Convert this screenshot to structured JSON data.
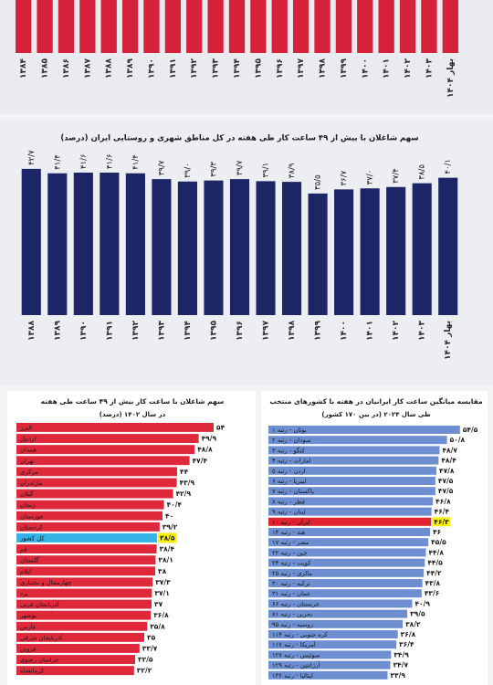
{
  "chart_data": [
    {
      "type": "bar",
      "categories": [
        "۱۳۸۴",
        "۱۳۸۵",
        "۱۳۸۶",
        "۱۳۸۷",
        "۱۳۸۸",
        "۱۳۸۹",
        "۱۳۹۰",
        "۱۳۹۱",
        "۱۳۹۲",
        "۱۳۹۳",
        "۱۳۹۴",
        "۱۳۹۵",
        "۱۳۹۶",
        "۱۳۹۷",
        "۱۳۹۸",
        "۱۳۹۹",
        "۱۴۰۰",
        "۱۴۰۱",
        "۱۴۰۲",
        "۱۴۰۳",
        "بهار ۱۴۰۴"
      ],
      "color": "#d6213a"
    },
    {
      "type": "bar",
      "title": "سهم شاغلان با بیش از ۴۹ ساعت کار طی هفته در کل مناطق شهری و روستایی ایران (درصد)",
      "categories": [
        "۱۳۸۸",
        "۱۳۸۹",
        "۱۳۹۰",
        "۱۳۹۱",
        "۱۳۹۲",
        "۱۳۹۳",
        "۱۳۹۴",
        "۱۳۹۵",
        "۱۳۹۶",
        "۱۳۹۷",
        "۱۳۹۸",
        "۱۳۹۹",
        "۱۴۰۰",
        "۱۴۰۱",
        "۱۴۰۲",
        "۱۴۰۳",
        "بهار ۱۴۰۴"
      ],
      "values": [
        42.7,
        41.4,
        41.6,
        41.6,
        41.4,
        39.7,
        39.0,
        39.3,
        39.7,
        39.1,
        38.9,
        35.5,
        36.7,
        37.0,
        37.4,
        38.5,
        40.1
      ],
      "value_labels": [
        "۴۲/۷",
        "۴۱/۴",
        "۴۱/۶",
        "۴۱/۶",
        "۴۱/۴",
        "۳۹/۷",
        "۳۹/۰",
        "۳۹/۳",
        "۳۹/۷",
        "۳۹/۱",
        "۳۸/۹",
        "۳۵/۵",
        "۳۶/۷",
        "۳۷/۰",
        "۳۷/۴",
        "۳۸/۵",
        "۴۰/۱"
      ],
      "color": "#1c2566"
    },
    {
      "type": "hbar",
      "title": "سهم شاغلان با ساعت کار بیش از ۴۹ ساعت طی هفته",
      "subtitle": "در سال ۱۴۰۲ (درصد)",
      "categories": [
        "البرز",
        "اردبیل",
        "همدان",
        "تهران",
        "مرکزی",
        "مازندران",
        "گیلان",
        "زنجان",
        "خوزستان",
        "کردستان",
        "کل کشور",
        "قم",
        "گلستان",
        "ایلام",
        "چهارمحال و بختیاری",
        "یزد",
        "آذربایجان غربی",
        "بوشهر",
        "فارس",
        "آذربایجان شرقی",
        "قزوین",
        "خراسان رضوی",
        "کرمانشاه"
      ],
      "values": [
        54,
        49.9,
        48.8,
        47.4,
        44,
        43.9,
        42.9,
        40.4,
        40,
        39.2,
        38.5,
        38.4,
        38.1,
        38,
        37.3,
        37.1,
        37,
        36.8,
        35.8,
        35,
        33.7,
        32.5,
        32.2
      ],
      "value_labels": [
        "۵۴",
        "۴۹/۹",
        "۴۸/۸",
        "۴۷/۴",
        "۴۴",
        "۴۳/۹",
        "۴۲/۹",
        "۴۰/۴",
        "۴۰",
        "۳۹/۲",
        "۳۸/۵",
        "۳۸/۴",
        "۳۸/۱",
        "۳۸",
        "۳۷/۳",
        "۳۷/۱",
        "۳۷",
        "۳۶/۸",
        "۳۵/۸",
        "۳۵",
        "۳۳/۷",
        "۳۲/۵",
        "۳۲/۲"
      ],
      "color": "#e0283b",
      "colors": [
        "#e0283b",
        "#e0283b",
        "#e0283b",
        "#e0283b",
        "#e0283b",
        "#e0283b",
        "#e0283b",
        "#e0283b",
        "#e0283b",
        "#e0283b",
        "#36b3e6",
        "#e0283b",
        "#e0283b",
        "#e0283b",
        "#e0283b",
        "#e0283b",
        "#e0283b",
        "#e0283b",
        "#e0283b",
        "#e0283b",
        "#e0283b",
        "#e0283b",
        "#e0283b"
      ],
      "highlight_label_background": "#fff200"
    },
    {
      "type": "hbar",
      "title": "مقایسه میانگین ساعت کار ایرانیان در هفته با کشورهای منتخب",
      "subtitle": "طی سال ۲۰۲۴ (در بین ۱۷۰ کشور)",
      "categories": [
        "بوتان - رتبه ۱",
        "سودان - رتبه ۲",
        "کنگو - رتبه ۳",
        "امارات - رتبه ۴",
        "اردن - رتبه ۵",
        "لیبریا - رتبه ۶",
        "پاکستان - رتبه ۷",
        "قطر - رتبه ۸",
        "لبنان - رتبه ۹",
        "ایران - رتبه ۱۰",
        "هند - رتبه ۱۴",
        "مصر - رتبه ۱۷",
        "چین - رتبه ۲۲",
        "کویت - رتبه ۲۴",
        "مالزی - رتبه ۲۵",
        "ترکیه - رتبه ۳۰",
        "عمان - رتبه ۳۱",
        "عربستان - رتبه ۶۶",
        "بحرین - رتبه ۸۱",
        "روسیه - رتبه ۹۵",
        "کره جنوبی - رتبه ۱۱۴",
        "آمریکا - رتبه ۱۱۷",
        "سوئیس - رتبه ۱۲۷",
        "آرژانتین - رتبه ۱۲۹",
        "ایتالیا - رتبه ۱۳۶"
      ],
      "values": [
        54.5,
        50.8,
        48.7,
        48.4,
        47.8,
        47.5,
        47.5,
        46.8,
        46.4,
        46.3,
        46,
        45.5,
        44.8,
        44.5,
        44.2,
        43.8,
        43.6,
        40.9,
        39.5,
        38.2,
        36.8,
        36.4,
        34.9,
        34.7,
        33.9
      ],
      "value_labels": [
        "۵۴/۵",
        "۵۰/۸",
        "۴۸/۷",
        "۴۸/۴",
        "۴۷/۸",
        "۴۷/۵",
        "۴۷/۵",
        "۴۶/۸",
        "۴۶/۴",
        "۴۶/۳",
        "۴۶",
        "۴۵/۵",
        "۴۴/۸",
        "۴۴/۵",
        "۴۴/۲",
        "۴۳/۸",
        "۴۳/۶",
        "۴۰/۹",
        "۳۹/۵",
        "۳۸/۲",
        "۳۶/۸",
        "۳۶/۴",
        "۳۴/۹",
        "۳۴/۷",
        "۳۳/۹"
      ],
      "color": "#6d8fd1",
      "colors": [
        "#6d8fd1",
        "#6d8fd1",
        "#6d8fd1",
        "#6d8fd1",
        "#6d8fd1",
        "#6d8fd1",
        "#6d8fd1",
        "#6d8fd1",
        "#6d8fd1",
        "#e0232e",
        "#6d8fd1",
        "#6d8fd1",
        "#6d8fd1",
        "#6d8fd1",
        "#6d8fd1",
        "#6d8fd1",
        "#6d8fd1",
        "#6d8fd1",
        "#6d8fd1",
        "#6d8fd1",
        "#6d8fd1",
        "#6d8fd1",
        "#6d8fd1",
        "#6d8fd1",
        "#6d8fd1"
      ],
      "highlight_label_background": "#fff200"
    }
  ]
}
